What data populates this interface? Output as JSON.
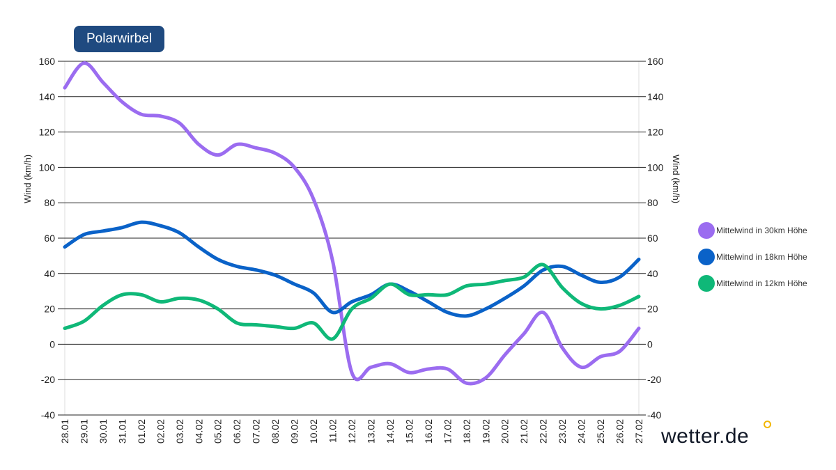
{
  "title": "Polarwirbel",
  "logo": {
    "text": "wetter.de",
    "dot_color": "#f2b705"
  },
  "chart_data": {
    "type": "line",
    "title": "Polarwirbel",
    "xlabel": "",
    "ylabel": "Wind (km/h)",
    "ylabel_right": "Wind (km/h)",
    "ylim": [
      -40,
      160
    ],
    "yticks": [
      160,
      140,
      120,
      100,
      80,
      60,
      40,
      20,
      0,
      -20,
      -40
    ],
    "grid": true,
    "legend_position": "right",
    "x": [
      "28.01",
      "29.01",
      "30.01",
      "31.01",
      "01.02",
      "02.02",
      "03.02",
      "04.02",
      "05.02",
      "06.02",
      "07.02",
      "08.02",
      "09.02",
      "10.02",
      "11.02",
      "12.02",
      "13.02",
      "14.02",
      "15.02",
      "16.02",
      "17.02",
      "18.02",
      "19.02",
      "20.02",
      "21.02",
      "22.02",
      "23.02",
      "24.02",
      "25.02",
      "26.02",
      "27.02"
    ],
    "series": [
      {
        "name": "Mittelwind in 30km Höhe",
        "color": "#9b6cf0",
        "values": [
          145,
          159,
          148,
          137,
          130,
          129,
          125,
          113,
          107,
          113,
          111,
          108,
          100,
          82,
          47,
          -16,
          -13,
          -11,
          -16,
          -14,
          -14,
          -22,
          -19,
          -6,
          6,
          18,
          -2,
          -13,
          -7,
          -4,
          9
        ]
      },
      {
        "name": "Mittelwind in 18km Höhe",
        "color": "#0a62c8",
        "values": [
          55,
          62,
          64,
          66,
          69,
          67,
          63,
          55,
          48,
          44,
          42,
          39,
          34,
          29,
          18,
          24,
          28,
          34,
          30,
          24,
          18,
          16,
          20,
          26,
          33,
          42,
          44,
          39,
          35,
          38,
          48
        ]
      },
      {
        "name": "Mittelwind in 12km Höhe",
        "color": "#0fb878",
        "values": [
          9,
          13,
          22,
          28,
          28,
          24,
          26,
          25,
          20,
          12,
          11,
          10,
          9,
          12,
          3,
          20,
          26,
          34,
          28,
          28,
          28,
          33,
          34,
          36,
          38,
          45,
          32,
          23,
          20,
          22,
          27
        ]
      }
    ]
  }
}
